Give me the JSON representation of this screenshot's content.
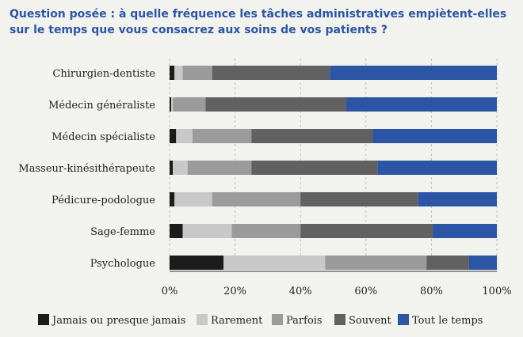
{
  "title": "Question posée : à quelle fréquence les tâches administratives empiètent-elles sur le temps que vous consacrez aux soins de vos patients ?",
  "chart_data": {
    "type": "bar",
    "orientation": "horizontal",
    "stacked": true,
    "normalized": true,
    "categories": [
      "Chirurgien-dentiste",
      "Médecin généraliste",
      "Médecin spécialiste",
      "Masseur-kinésithérapeute",
      "Pédicure-podologue",
      "Sage-femme",
      "Psychologue"
    ],
    "series": [
      {
        "name": "Jamais ou presque jamais",
        "color": "#1c1c1c",
        "values": [
          1.5,
          0.5,
          2,
          1,
          1.5,
          4,
          16.5
        ]
      },
      {
        "name": "Rarement",
        "color": "#c8c8c8",
        "values": [
          2.5,
          0.5,
          5,
          4.5,
          11.5,
          15,
          31
        ]
      },
      {
        "name": "Parfois",
        "color": "#9b9b9b",
        "values": [
          9,
          10,
          18,
          19.5,
          27,
          21,
          31
        ]
      },
      {
        "name": "Souvent",
        "color": "#616161",
        "values": [
          36,
          43,
          37,
          38.5,
          36,
          40.5,
          13
        ]
      },
      {
        "name": "Tout le temps",
        "color": "#2d55a5",
        "values": [
          51,
          46,
          38,
          36.5,
          24,
          19.5,
          8.5
        ]
      }
    ],
    "xlim": [
      0,
      100
    ],
    "xticks": [
      "0%",
      "20%",
      "40%",
      "60%",
      "80%",
      "100%"
    ],
    "grid": "vertical dashed",
    "legend_position": "bottom"
  }
}
